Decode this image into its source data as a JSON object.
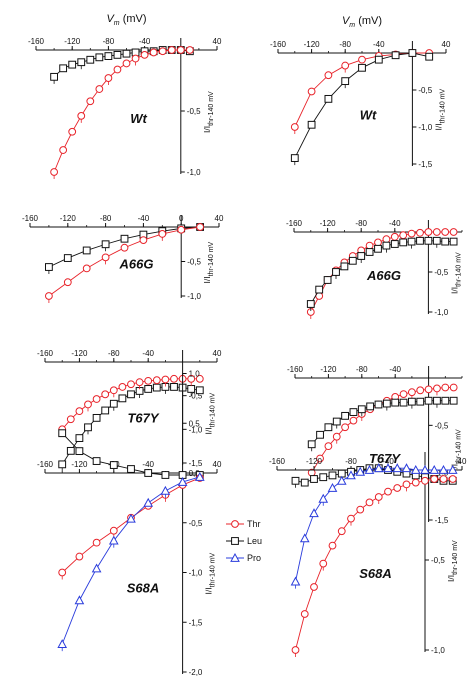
{
  "figure": {
    "vm_label": "V",
    "vm_sub": "m",
    "vm_unit": " (mV)",
    "ylabel_main": "I/I",
    "ylabel_sub": "thr-140 mV",
    "legend": [
      {
        "name": "Thr",
        "color": "#e8232a",
        "marker": "circle"
      },
      {
        "name": "Leu",
        "color": "#111111",
        "marker": "square"
      },
      {
        "name": "Pro",
        "color": "#2a3cdc",
        "marker": "triangle"
      }
    ]
  },
  "chart_data": [
    {
      "type": "line",
      "panel": "left",
      "genotype": "Wt",
      "xlim": [
        -160,
        40
      ],
      "ylim": [
        -1.0,
        0
      ],
      "xticks": [
        "-160",
        "-120",
        "-80",
        "-40",
        "40"
      ],
      "yticks": [
        "-0,5",
        "-1,0"
      ],
      "show_vm": true,
      "series": [
        {
          "name": "Leu",
          "x": [
            -140,
            -130,
            -120,
            -110,
            -100,
            -90,
            -80,
            -70,
            -60,
            -50,
            -40,
            -30,
            -20,
            -10,
            0,
            10
          ],
          "y": [
            -0.22,
            -0.15,
            -0.12,
            -0.1,
            -0.08,
            -0.06,
            -0.05,
            -0.04,
            -0.03,
            -0.02,
            -0.01,
            -0.01,
            0,
            0,
            0,
            -0.01
          ]
        },
        {
          "name": "Thr",
          "x": [
            -140,
            -130,
            -120,
            -110,
            -100,
            -90,
            -80,
            -70,
            -60,
            -50,
            -40,
            -30,
            -20,
            -10,
            0,
            10
          ],
          "y": [
            -1.0,
            -0.82,
            -0.67,
            -0.54,
            -0.42,
            -0.32,
            -0.23,
            -0.16,
            -0.11,
            -0.07,
            -0.04,
            -0.02,
            -0.01,
            0,
            0,
            0
          ]
        }
      ]
    },
    {
      "type": "line",
      "panel": "right",
      "genotype": "Wt",
      "xlim": [
        -160,
        40
      ],
      "ylim": [
        -1.5,
        0
      ],
      "xticks": [
        "-160",
        "-120",
        "-80",
        "-40",
        "40"
      ],
      "yticks": [
        "-0,5",
        "-1,0",
        "-1,5"
      ],
      "show_vm": true,
      "series": [
        {
          "name": "Thr",
          "x": [
            -140,
            -120,
            -100,
            -80,
            -60,
            -40,
            -20,
            0,
            20
          ],
          "y": [
            -1.0,
            -0.52,
            -0.3,
            -0.17,
            -0.09,
            -0.04,
            -0.02,
            0,
            0
          ]
        },
        {
          "name": "Leu",
          "x": [
            -140,
            -120,
            -100,
            -80,
            -60,
            -40,
            -20,
            0,
            20
          ],
          "y": [
            -1.42,
            -0.97,
            -0.62,
            -0.38,
            -0.2,
            -0.09,
            -0.03,
            0,
            -0.05
          ]
        }
      ]
    },
    {
      "type": "line",
      "panel": "left",
      "genotype": "A66G",
      "xlim": [
        -160,
        40
      ],
      "ylim": [
        -1.0,
        0
      ],
      "xticks": [
        "-160",
        "-120",
        "-80",
        "-40",
        "0",
        "40"
      ],
      "yticks": [
        "-0,5",
        "-1,0"
      ],
      "show_vm": false,
      "series": [
        {
          "name": "Leu",
          "x": [
            -140,
            -120,
            -100,
            -80,
            -60,
            -40,
            -20,
            0,
            20
          ],
          "y": [
            -0.58,
            -0.45,
            -0.34,
            -0.25,
            -0.17,
            -0.11,
            -0.06,
            -0.02,
            0
          ]
        },
        {
          "name": "Thr",
          "x": [
            -140,
            -120,
            -100,
            -80,
            -60,
            -40,
            -20,
            0,
            20
          ],
          "y": [
            -1.0,
            -0.8,
            -0.6,
            -0.44,
            -0.3,
            -0.19,
            -0.1,
            -0.04,
            0
          ]
        }
      ]
    },
    {
      "type": "line",
      "panel": "right",
      "genotype": "A66G",
      "xlim": [
        -160,
        40
      ],
      "ylim": [
        -1.0,
        0
      ],
      "xticks": [
        "-160",
        "-120",
        "-80",
        "-40"
      ],
      "yticks": [
        "-0,5",
        "-1,0"
      ],
      "show_vm": false,
      "series": [
        {
          "name": "Thr",
          "x": [
            -140,
            -130,
            -120,
            -110,
            -100,
            -90,
            -80,
            -70,
            -60,
            -50,
            -40,
            -30,
            -20,
            -10,
            0,
            10,
            20,
            30
          ],
          "y": [
            -1.0,
            -0.8,
            -0.6,
            -0.48,
            -0.38,
            -0.3,
            -0.23,
            -0.17,
            -0.13,
            -0.09,
            -0.06,
            -0.04,
            -0.02,
            -0.01,
            0,
            0,
            0,
            0
          ]
        },
        {
          "name": "Leu",
          "x": [
            -140,
            -130,
            -120,
            -110,
            -100,
            -90,
            -80,
            -70,
            -60,
            -50,
            -40,
            -30,
            -20,
            -10,
            0,
            10,
            20,
            30
          ],
          "y": [
            -0.9,
            -0.72,
            -0.6,
            -0.5,
            -0.43,
            -0.36,
            -0.3,
            -0.25,
            -0.21,
            -0.17,
            -0.15,
            -0.13,
            -0.12,
            -0.11,
            -0.11,
            -0.11,
            -0.12,
            -0.12
          ]
        }
      ]
    },
    {
      "type": "line",
      "panel": "left",
      "genotype": "T67Y",
      "xlim": [
        -160,
        40
      ],
      "ylim": [
        -1.5,
        0
      ],
      "xticks": [
        "-160",
        "-120",
        "-80",
        "-40",
        "40"
      ],
      "yticks": [
        "-0,5",
        "-1,0",
        "-1,5"
      ],
      "show_vm": false,
      "series": [
        {
          "name": "Leu",
          "x": [
            -140,
            -130,
            -120,
            -110,
            -100,
            -90,
            -80,
            -70,
            -60,
            -50,
            -40,
            -30,
            -20,
            -10,
            0,
            10,
            20
          ],
          "y": [
            -1.52,
            -1.32,
            -1.13,
            -0.97,
            -0.83,
            -0.72,
            -0.62,
            -0.54,
            -0.48,
            -0.43,
            -0.4,
            -0.38,
            -0.37,
            -0.37,
            -0.38,
            -0.4,
            -0.42
          ]
        },
        {
          "name": "Thr",
          "x": [
            -140,
            -130,
            -120,
            -110,
            -100,
            -90,
            -80,
            -70,
            -60,
            -50,
            -40,
            -30,
            -20,
            -10,
            0,
            10,
            20
          ],
          "y": [
            -1.0,
            -0.85,
            -0.73,
            -0.63,
            -0.55,
            -0.48,
            -0.42,
            -0.37,
            -0.33,
            -0.3,
            -0.28,
            -0.27,
            -0.26,
            -0.25,
            -0.25,
            -0.25,
            -0.25
          ]
        }
      ]
    },
    {
      "type": "line",
      "panel": "right",
      "genotype": "T67Y",
      "xlim": [
        -160,
        40
      ],
      "ylim": [
        -1.5,
        0
      ],
      "xticks": [
        "-160",
        "-120",
        "-80",
        "-40"
      ],
      "yticks": [
        "-0,5",
        "-1,0",
        "-1,5"
      ],
      "show_vm": false,
      "series": [
        {
          "name": "Thr",
          "x": [
            -140,
            -130,
            -120,
            -110,
            -100,
            -90,
            -80,
            -70,
            -60,
            -50,
            -40,
            -30,
            -20,
            -10,
            0,
            10,
            20,
            30
          ],
          "y": [
            -1.0,
            -0.85,
            -0.72,
            -0.62,
            -0.52,
            -0.45,
            -0.38,
            -0.33,
            -0.28,
            -0.24,
            -0.2,
            -0.17,
            -0.15,
            -0.13,
            -0.12,
            -0.11,
            -0.1,
            -0.1
          ]
        },
        {
          "name": "Leu",
          "x": [
            -140,
            -130,
            -120,
            -110,
            -100,
            -90,
            -80,
            -70,
            -60,
            -50,
            -40,
            -30,
            -20,
            -10,
            0,
            10,
            20,
            30
          ],
          "y": [
            -0.7,
            -0.6,
            -0.52,
            -0.46,
            -0.4,
            -0.36,
            -0.33,
            -0.3,
            -0.28,
            -0.27,
            -0.26,
            -0.26,
            -0.25,
            -0.25,
            -0.24,
            -0.24,
            -0.24,
            -0.24
          ]
        }
      ]
    },
    {
      "type": "line",
      "panel": "left",
      "genotype": "S68A",
      "xlim": [
        -160,
        40
      ],
      "ylim": [
        -2.0,
        1.0
      ],
      "xticks": [
        "-160",
        "-120",
        "-80",
        "-40",
        "40"
      ],
      "yticks": [
        "1,0",
        "0,5",
        "0,0",
        "-0,5",
        "-1,0",
        "-1,5",
        "-2,0"
      ],
      "show_vm": false,
      "series": [
        {
          "name": "Leu",
          "x": [
            -140,
            -120,
            -100,
            -80,
            -60,
            -40,
            -20,
            0,
            20
          ],
          "y": [
            0.4,
            0.22,
            0.12,
            0.08,
            0.04,
            0.0,
            -0.02,
            -0.02,
            -0.02
          ]
        },
        {
          "name": "Thr",
          "x": [
            -140,
            -120,
            -100,
            -80,
            -60,
            -40,
            -20,
            0,
            20
          ],
          "y": [
            -1.0,
            -0.84,
            -0.7,
            -0.58,
            -0.45,
            -0.33,
            -0.22,
            -0.12,
            -0.05
          ]
        },
        {
          "name": "Pro",
          "x": [
            -140,
            -120,
            -100,
            -80,
            -60,
            -40,
            -20,
            0,
            20
          ],
          "y": [
            -1.72,
            -1.28,
            -0.96,
            -0.68,
            -0.46,
            -0.3,
            -0.18,
            -0.09,
            -0.04
          ]
        }
      ]
    },
    {
      "type": "line",
      "panel": "right",
      "genotype": "S68A",
      "xlim": [
        -160,
        40
      ],
      "ylim": [
        -1.0,
        0.1
      ],
      "xticks": [
        "-160",
        "-120",
        "-80",
        "-40",
        "40"
      ],
      "yticks": [
        "-0,5",
        "-1,0"
      ],
      "show_vm": false,
      "series": [
        {
          "name": "Leu",
          "x": [
            -140,
            -130,
            -120,
            -110,
            -100,
            -90,
            -80,
            -70,
            -60,
            -50,
            -40,
            -30,
            -20,
            -10,
            0,
            10,
            20,
            30
          ],
          "y": [
            -0.06,
            -0.07,
            -0.05,
            -0.04,
            -0.03,
            -0.02,
            -0.01,
            0,
            0.01,
            0.01,
            0.0,
            -0.01,
            -0.02,
            -0.03,
            -0.04,
            -0.05,
            -0.06,
            -0.06
          ]
        },
        {
          "name": "Thr",
          "x": [
            -140,
            -130,
            -120,
            -110,
            -100,
            -90,
            -80,
            -70,
            -60,
            -50,
            -40,
            -30,
            -20,
            -10,
            0,
            10,
            20,
            30
          ],
          "y": [
            -1.0,
            -0.8,
            -0.65,
            -0.52,
            -0.42,
            -0.34,
            -0.27,
            -0.22,
            -0.18,
            -0.15,
            -0.12,
            -0.1,
            -0.08,
            -0.07,
            -0.06,
            -0.05,
            -0.05,
            -0.05
          ]
        },
        {
          "name": "Pro",
          "x": [
            -140,
            -130,
            -120,
            -110,
            -100,
            -90,
            -80,
            -70,
            -60,
            -50,
            -40,
            -30,
            -20,
            -10,
            0,
            10,
            20,
            30
          ],
          "y": [
            -0.62,
            -0.38,
            -0.24,
            -0.16,
            -0.1,
            -0.06,
            -0.03,
            -0.01,
            0.0,
            0.01,
            0.01,
            0.01,
            0.01,
            0.0,
            0.0,
            0.0,
            0.0,
            0.0
          ]
        }
      ]
    }
  ]
}
